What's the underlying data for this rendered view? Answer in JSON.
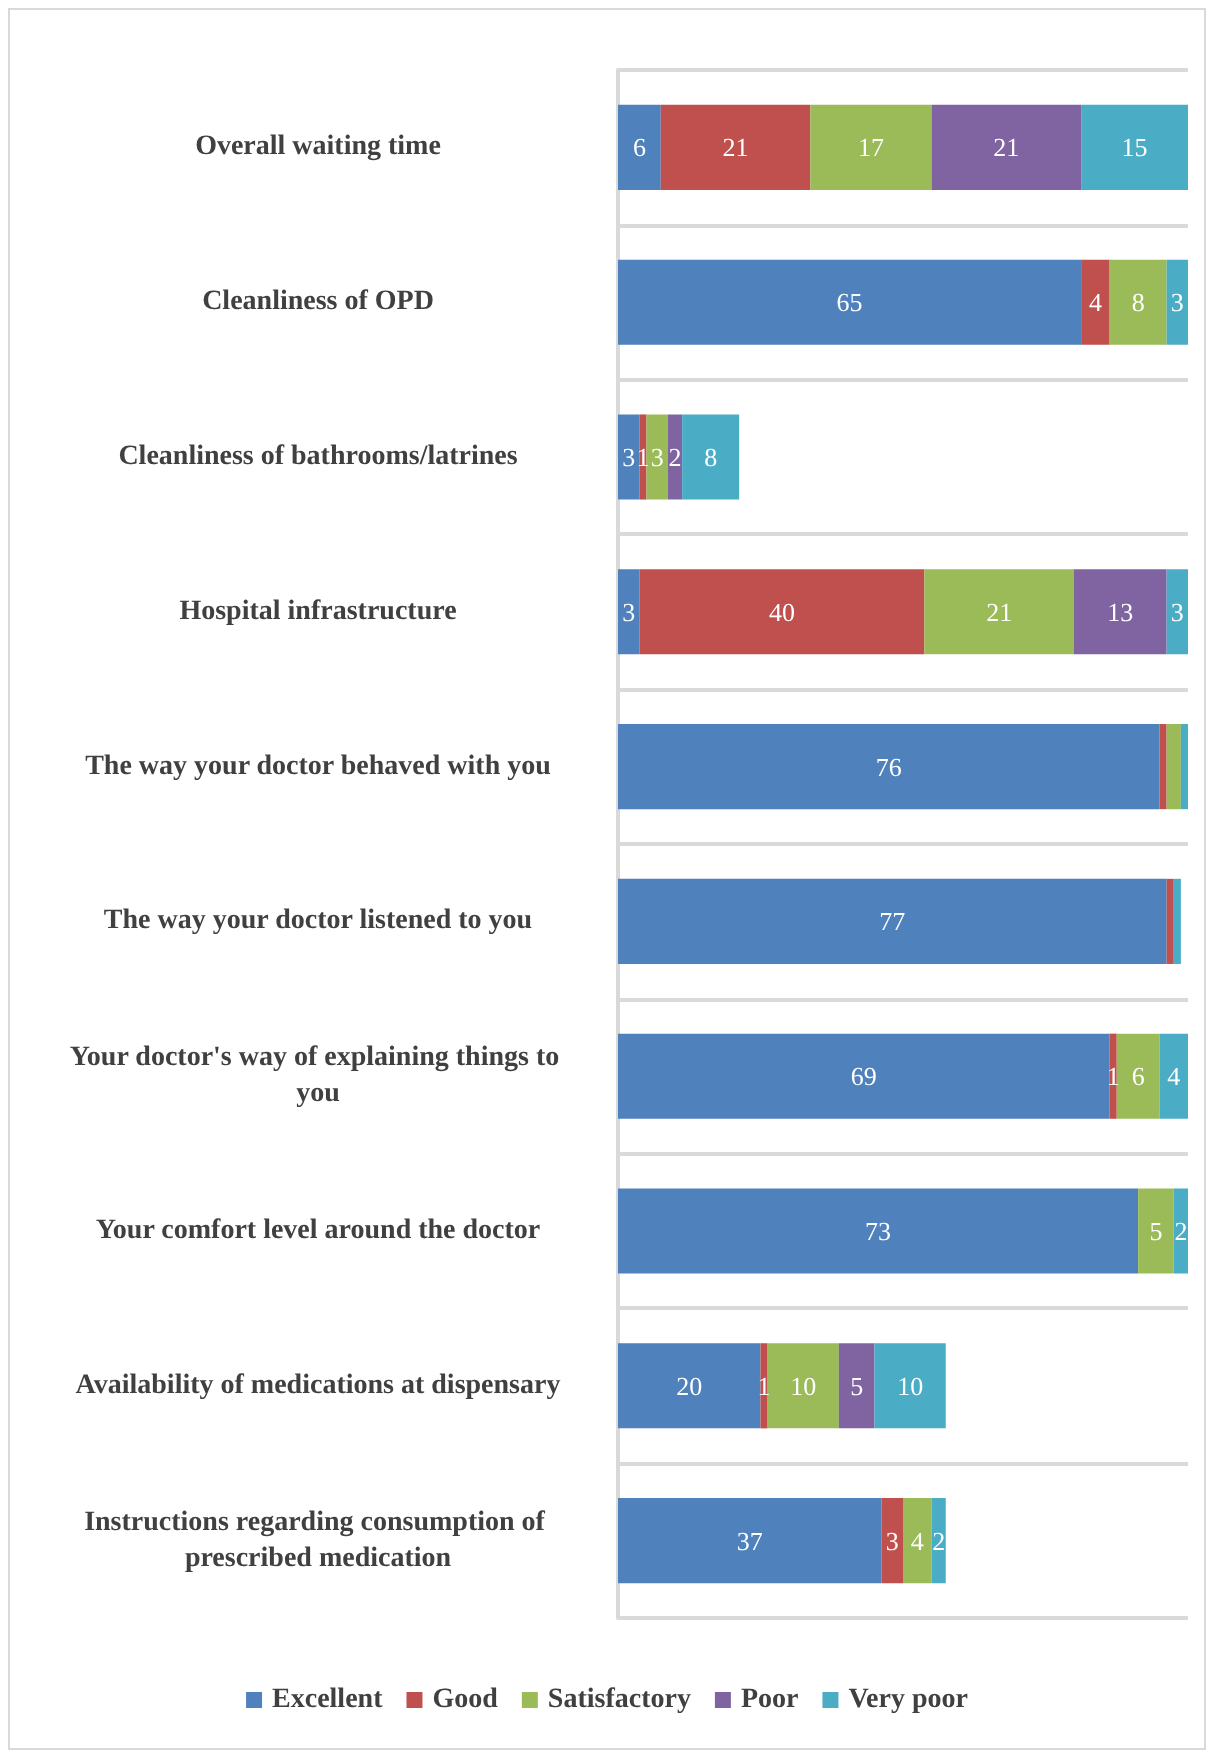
{
  "chart_data": {
    "type": "bar",
    "orientation": "horizontal",
    "stacked": true,
    "grid": "y",
    "legend": "bottom",
    "categories": [
      "Overall waiting time",
      "Cleanliness of OPD",
      "Cleanliness of bathrooms/latrines",
      "Hospital infrastructure",
      "The way your doctor behaved with you",
      "The way your doctor listened to you",
      "Your doctor's way of explaining things to you",
      "Your comfort level around the doctor",
      "Availability of medications at dispensary",
      "Instructions regarding consumption of prescribed medication"
    ],
    "series": [
      {
        "name": "Excellent",
        "color": "#4f81bd",
        "values": [
          6,
          65,
          3,
          3,
          76,
          77,
          69,
          73,
          20,
          37
        ],
        "value_labels": [
          "6",
          "65",
          "3",
          "3",
          "76",
          "77",
          "69",
          "73",
          "20",
          "37"
        ]
      },
      {
        "name": "Good",
        "color": "#c0504d",
        "values": [
          21,
          4,
          1,
          40,
          1,
          1,
          1,
          0,
          1,
          3
        ],
        "value_labels": [
          "21",
          "4",
          "1",
          "40",
          null,
          null,
          "1",
          null,
          "1",
          "3"
        ]
      },
      {
        "name": "Satisfactory",
        "color": "#9bbb59",
        "values": [
          17,
          8,
          3,
          21,
          2,
          0,
          6,
          5,
          10,
          4
        ],
        "value_labels": [
          "17",
          "8",
          "3",
          "21",
          null,
          null,
          "6",
          "5",
          "10",
          "4"
        ]
      },
      {
        "name": "Poor",
        "color": "#8064a2",
        "values": [
          21,
          0,
          2,
          13,
          0,
          0,
          0,
          0,
          5,
          0
        ],
        "value_labels": [
          "21",
          null,
          "2",
          "13",
          null,
          null,
          null,
          null,
          "5",
          null
        ]
      },
      {
        "name": "Very poor",
        "color": "#4bacc6",
        "values": [
          15,
          3,
          8,
          3,
          1,
          1,
          4,
          2,
          10,
          2
        ],
        "value_labels": [
          "15",
          "3",
          "8",
          "3",
          null,
          null,
          "4",
          "2",
          "10",
          "2"
        ]
      }
    ]
  }
}
